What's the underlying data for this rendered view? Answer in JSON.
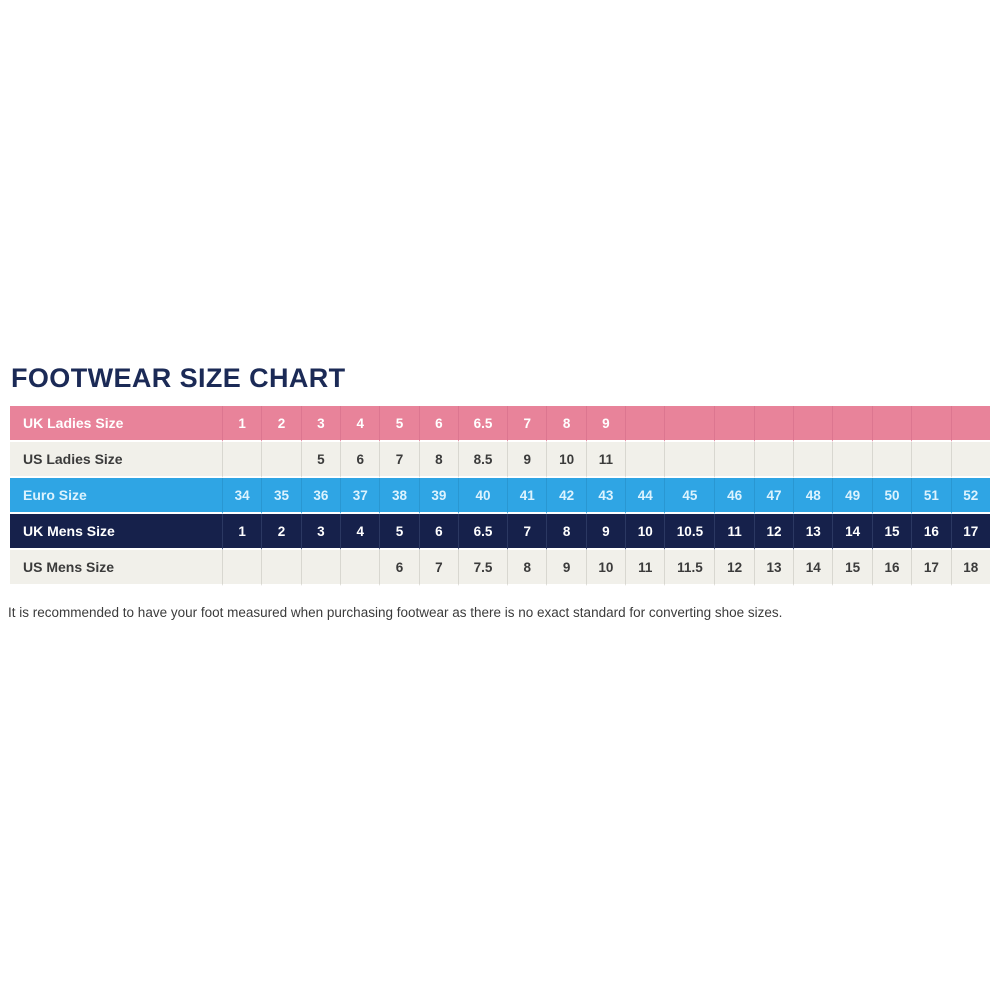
{
  "title": "FOOTWEAR SIZE CHART",
  "footnote": "It is recommended to have your foot measured when purchasing footwear as there is no exact standard for converting shoe sizes.",
  "colors": {
    "title_text": "#1B2A56",
    "pink_row_bg": "#E8839A",
    "pink_row_text": "#FFFFFF",
    "light_row_bg": "#F1F0EA",
    "light_row_text": "#3B3B3B",
    "blue_row_bg": "#2FA5E4",
    "blue_row_text": "#DCF3FE",
    "navy_row_bg": "#16214B",
    "navy_row_text": "#FFFFFF",
    "row_gap": "#FFFFFF"
  },
  "chart_data": {
    "type": "table",
    "title": "FOOTWEAR SIZE CHART",
    "columns_count": 19,
    "legend_position": "none",
    "grid": "cell-separators",
    "rows": [
      {
        "label": "UK Ladies Size",
        "style": "pink",
        "values": [
          "1",
          "2",
          "3",
          "4",
          "5",
          "6",
          "6.5",
          "7",
          "8",
          "9",
          "",
          "",
          "",
          "",
          "",
          "",
          "",
          "",
          ""
        ]
      },
      {
        "label": "US Ladies Size",
        "style": "light",
        "values": [
          "",
          "",
          "5",
          "6",
          "7",
          "8",
          "8.5",
          "9",
          "10",
          "11",
          "",
          "",
          "",
          "",
          "",
          "",
          "",
          "",
          ""
        ]
      },
      {
        "label": "Euro Size",
        "style": "blue",
        "values": [
          "34",
          "35",
          "36",
          "37",
          "38",
          "39",
          "40",
          "41",
          "42",
          "43",
          "44",
          "45",
          "46",
          "47",
          "48",
          "49",
          "50",
          "51",
          "52"
        ]
      },
      {
        "label": "UK Mens Size",
        "style": "navy",
        "values": [
          "1",
          "2",
          "3",
          "4",
          "5",
          "6",
          "6.5",
          "7",
          "8",
          "9",
          "10",
          "10.5",
          "11",
          "12",
          "13",
          "14",
          "15",
          "16",
          "17"
        ]
      },
      {
        "label": "US Mens Size",
        "style": "light",
        "values": [
          "",
          "",
          "",
          "",
          "6",
          "7",
          "7.5",
          "8",
          "9",
          "10",
          "11",
          "11.5",
          "12",
          "13",
          "14",
          "15",
          "16",
          "17",
          "18"
        ]
      }
    ]
  }
}
